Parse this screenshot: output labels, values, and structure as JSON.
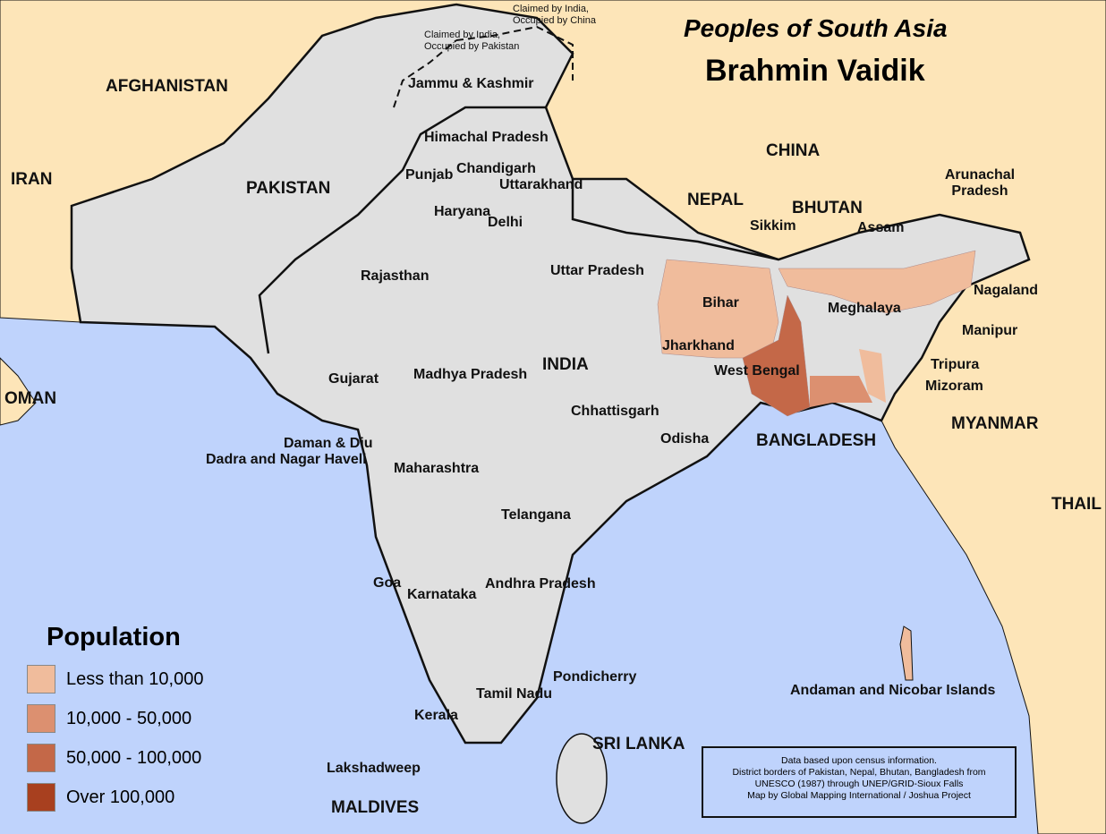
{
  "title": {
    "series": "Peoples of South Asia",
    "people_group": "Brahmin Vaidik"
  },
  "colors": {
    "sea": "#bfd3fc",
    "land_other": "#fde5b8",
    "region": "#e0e0e0",
    "border": "#111111"
  },
  "legend": {
    "title": "Population",
    "items": [
      {
        "label": "Less than 10,000",
        "color": "#f0bc9c"
      },
      {
        "label": "10,000 - 50,000",
        "color": "#dc9070"
      },
      {
        "label": "50,000 - 100,000",
        "color": "#c46848"
      },
      {
        "label": "Over 100,000",
        "color": "#a8401f"
      }
    ]
  },
  "countries": [
    "AFGHANISTAN",
    "IRAN",
    "PAKISTAN",
    "CHINA",
    "NEPAL",
    "BHUTAN",
    "INDIA",
    "BANGLADESH",
    "MYANMAR",
    "THAIL",
    "OMAN",
    "SRI LANKA",
    "MALDIVES"
  ],
  "regions": [
    "Jammu & Kashmir",
    "Himachal Pradesh",
    "Punjab",
    "Chandigarh",
    "Uttarakhand",
    "Haryana",
    "Delhi",
    "Rajasthan",
    "Uttar Pradesh",
    "Sikkim",
    "Arunachal Pradesh",
    "Assam",
    "Nagaland",
    "Meghalaya",
    "Manipur",
    "Bihar",
    "Jharkhand",
    "West Bengal",
    "Tripura",
    "Mizoram",
    "Gujarat",
    "Madhya Pradesh",
    "Chhattisgarh",
    "Odisha",
    "Daman & Diu",
    "Dadra and Nagar Haveli",
    "Maharashtra",
    "Telangana",
    "Goa",
    "Karnataka",
    "Andhra Pradesh",
    "Pondicherry",
    "Tamil Nadu",
    "Kerala",
    "Lakshadweep",
    "Andaman and Nicobar Islands"
  ],
  "disputed": [
    "Claimed by India, Occupied by China",
    "Claimed by India, Occupied by Pakistan"
  ],
  "credits": [
    "Data based upon census information.",
    "District borders of Pakistan, Nepal, Bhutan, Bangladesh from",
    "UNESCO (1987) through UNEP/GRID-Sioux Falls",
    "Map by Global Mapping International / Joshua Project"
  ]
}
